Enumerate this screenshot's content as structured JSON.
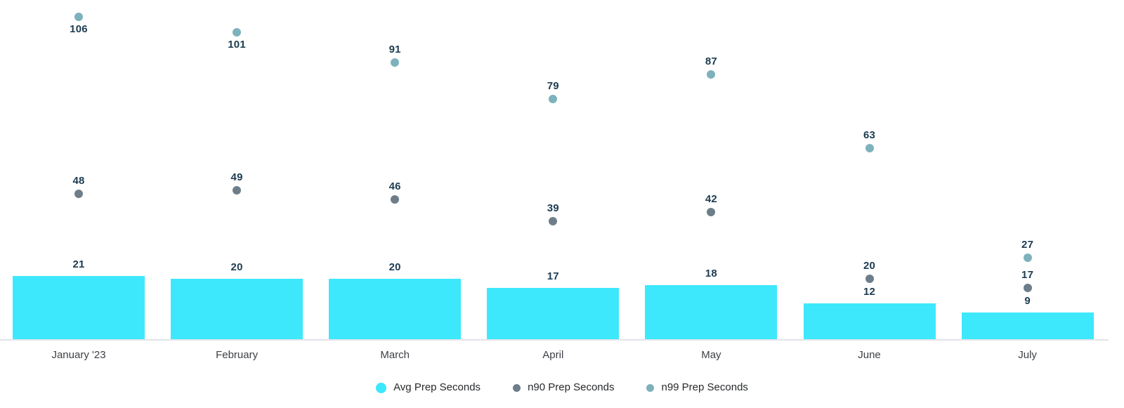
{
  "chart_data": {
    "type": "bar",
    "subtype": "combo-bar-scatter",
    "title": "",
    "xlabel": "",
    "ylabel": "",
    "categories": [
      "January '23",
      "February",
      "March",
      "April",
      "May",
      "June",
      "July"
    ],
    "series": [
      {
        "name": "Avg Prep Seconds",
        "type": "bar",
        "color": "#3DE8FD",
        "values": [
          21,
          20,
          20,
          17,
          18,
          12,
          9
        ]
      },
      {
        "name": "n90 Prep Seconds",
        "type": "scatter",
        "color": "#6D7E8A",
        "values": [
          48,
          49,
          46,
          39,
          42,
          20,
          17
        ]
      },
      {
        "name": "n99 Prep Seconds",
        "type": "scatter",
        "color": "#7DB2BC",
        "values": [
          106,
          101,
          91,
          79,
          87,
          63,
          27
        ]
      }
    ],
    "ylim": [
      0,
      111
    ],
    "grid": false,
    "y_axis_labels": false,
    "value_labels": true,
    "legend_position": "bottom",
    "colors": {
      "value_label": "#1C3C51",
      "axis_line": "#E2E4E9",
      "month_label": "#3D4045",
      "legend_text": "#27292C",
      "background": "#FFFFFF"
    }
  }
}
